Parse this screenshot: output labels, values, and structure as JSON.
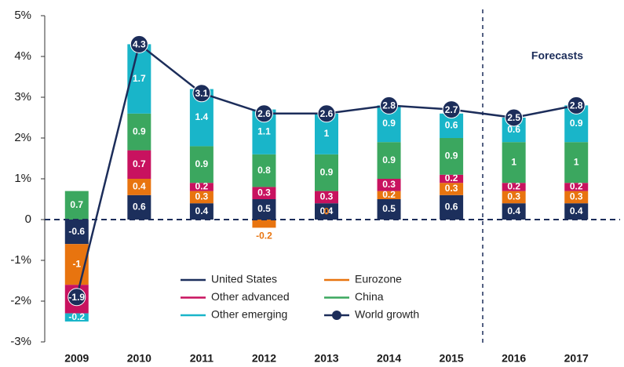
{
  "chart_data": {
    "type": "bar",
    "stacked": true,
    "categories": [
      "2009",
      "2010",
      "2011",
      "2012",
      "2013",
      "2014",
      "2015",
      "2016",
      "2017"
    ],
    "series": [
      {
        "name": "United States",
        "color": "#1c2f5c",
        "values": [
          -0.6,
          0.6,
          0.4,
          0.5,
          0.4,
          0.5,
          0.6,
          0.4,
          0.4
        ]
      },
      {
        "name": "Eurozone",
        "color": "#e8740f",
        "values": [
          -1.0,
          0.4,
          0.3,
          -0.2,
          0,
          0.2,
          0.3,
          0.3,
          0.3
        ]
      },
      {
        "name": "Other advanced",
        "color": "#c8125f",
        "values": [
          -0.7,
          0.7,
          0.2,
          0.3,
          0.3,
          0.3,
          0.2,
          0.2,
          0.2
        ]
      },
      {
        "name": "China",
        "color": "#3ba75f",
        "values": [
          0.7,
          0.9,
          0.9,
          0.8,
          0.9,
          0.9,
          0.9,
          1.0,
          1.0
        ]
      },
      {
        "name": "Other emerging",
        "color": "#19b5c9",
        "values": [
          -0.2,
          1.7,
          1.4,
          1.1,
          1.0,
          0.9,
          0.6,
          0.6,
          0.9
        ]
      },
      {
        "name": "World growth",
        "color": "#1c2d5a",
        "type": "line",
        "values": [
          -1.9,
          4.3,
          3.1,
          2.6,
          2.6,
          2.8,
          2.7,
          2.5,
          2.8
        ]
      }
    ],
    "ylim": [
      -3,
      5
    ],
    "yticks": [
      {
        "value": -3,
        "label": "-3%"
      },
      {
        "value": -2,
        "label": "-2%"
      },
      {
        "value": -1,
        "label": "-1%"
      },
      0,
      {
        "value": 1,
        "label": "1%"
      },
      {
        "value": 2,
        "label": "2%"
      },
      {
        "value": 3,
        "label": "3%"
      },
      {
        "value": 4,
        "label": "4%"
      },
      {
        "value": 5,
        "label": "5%"
      }
    ],
    "annotation": "Forecasts",
    "grid": false
  }
}
